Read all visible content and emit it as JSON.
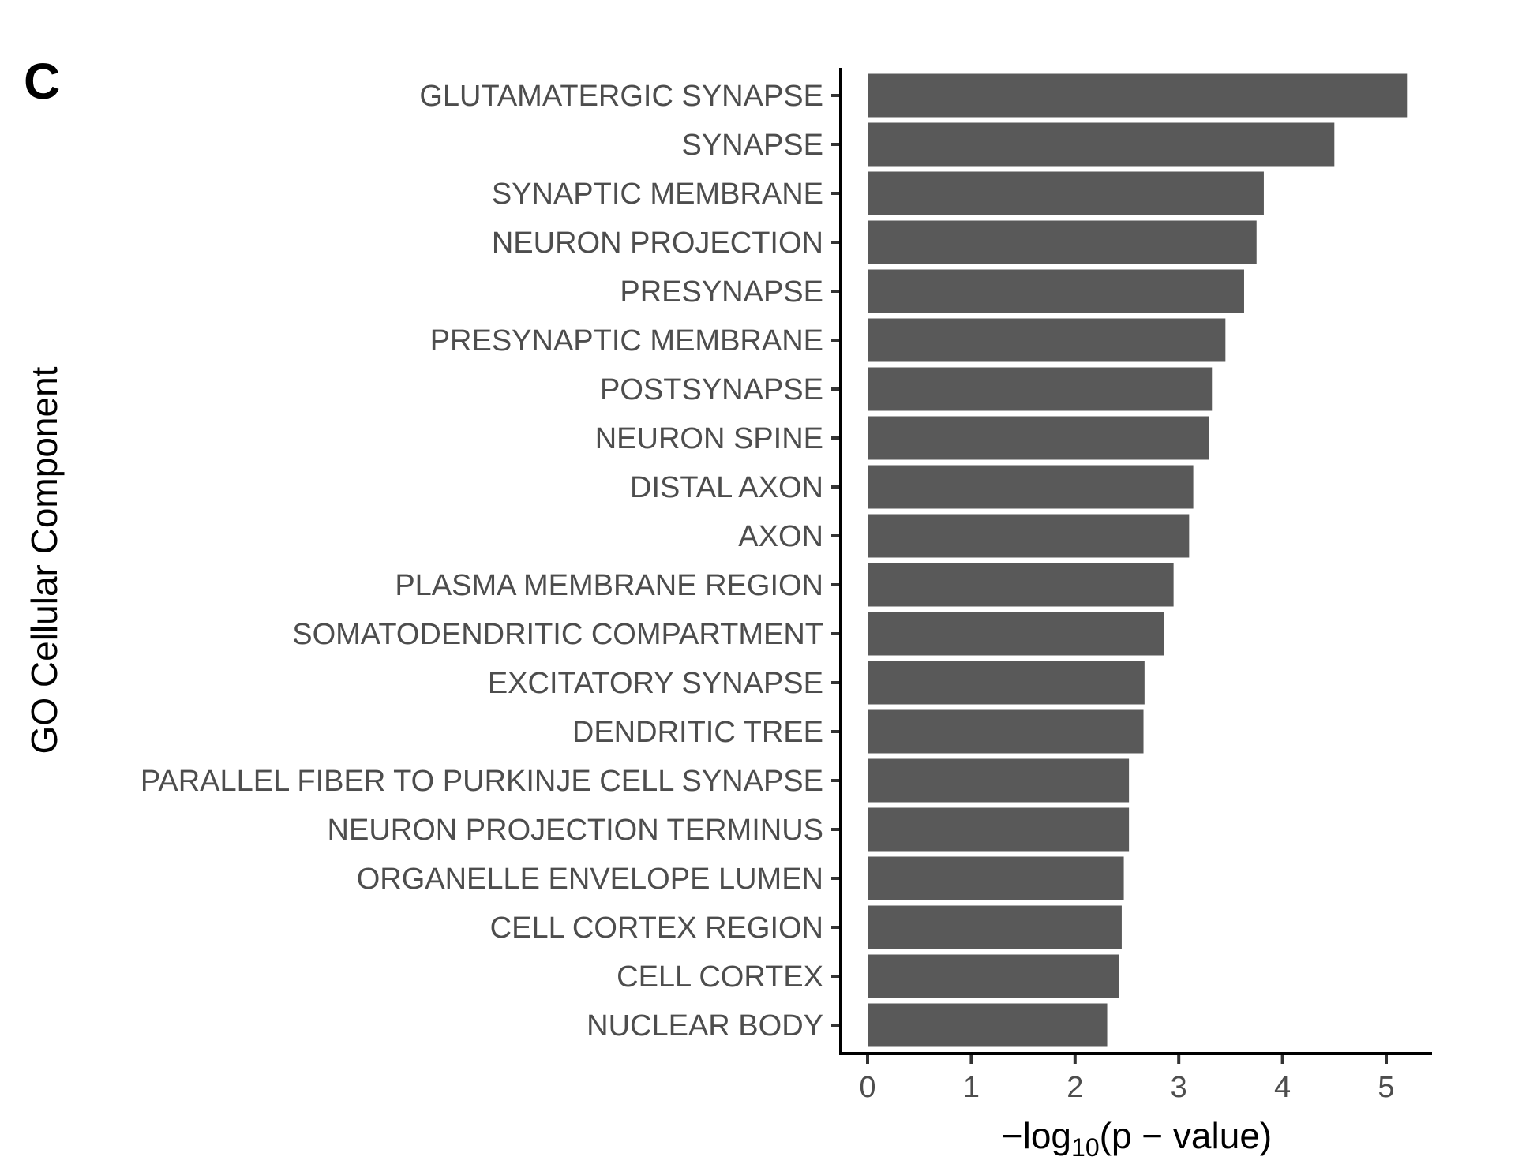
{
  "panel_label": "C",
  "chart_data": {
    "type": "bar",
    "orientation": "horizontal",
    "xlabel": "−log10(p − value)",
    "xlabel_parts": {
      "prefix": "−log",
      "subscript": "10",
      "suffix": "(p − value)"
    },
    "ylabel": "GO Cellular Component",
    "xlim": [
      0,
      5.45
    ],
    "xticks": [
      0,
      1,
      2,
      3,
      4,
      5
    ],
    "grid": false,
    "bar_color": "#595959",
    "categories": [
      "GLUTAMATERGIC SYNAPSE",
      "SYNAPSE",
      "SYNAPTIC MEMBRANE",
      "NEURON PROJECTION",
      "PRESYNAPSE",
      "PRESYNAPTIC MEMBRANE",
      "POSTSYNAPSE",
      "NEURON SPINE",
      "DISTAL AXON",
      "AXON",
      "PLASMA MEMBRANE REGION",
      "SOMATODENDRITIC COMPARTMENT",
      "EXCITATORY SYNAPSE",
      "DENDRITIC TREE",
      "PARALLEL FIBER TO PURKINJE CELL SYNAPSE",
      "NEURON PROJECTION TERMINUS",
      "ORGANELLE ENVELOPE LUMEN",
      "CELL CORTEX REGION",
      "CELL CORTEX",
      "NUCLEAR BODY"
    ],
    "values": [
      5.2,
      4.5,
      3.82,
      3.75,
      3.63,
      3.45,
      3.32,
      3.29,
      3.14,
      3.1,
      2.95,
      2.86,
      2.67,
      2.66,
      2.52,
      2.52,
      2.47,
      2.45,
      2.42,
      2.31
    ]
  }
}
